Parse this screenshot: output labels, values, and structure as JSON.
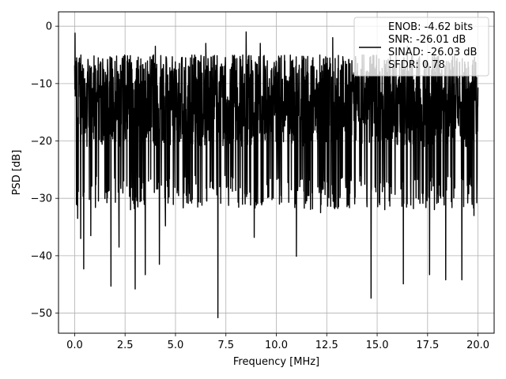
{
  "chart_data": {
    "type": "line",
    "title": "",
    "xlabel": "Frequency [MHz]",
    "ylabel": "PSD [dB]",
    "xlim": [
      -0.8,
      20.8
    ],
    "ylim": [
      -53.5,
      2.5
    ],
    "xticks": [
      0.0,
      2.5,
      5.0,
      7.5,
      10.0,
      12.5,
      15.0,
      17.5,
      20.0
    ],
    "xtick_labels": [
      "0.0",
      "2.5",
      "5.0",
      "7.5",
      "10.0",
      "12.5",
      "15.0",
      "17.5",
      "20.0"
    ],
    "yticks": [
      0,
      -10,
      -20,
      -30,
      -40,
      -50
    ],
    "ytick_labels": [
      "0",
      "−10",
      "−20",
      "−30",
      "−40",
      "−50"
    ],
    "grid": true,
    "legend_position": "top-right",
    "legend_entries": [
      "ENOB: -4.62 bits",
      "SNR: -26.01 dB",
      "SINAD: -26.03 dB",
      "SFDR: 0.78"
    ],
    "series": [
      {
        "color": "#000000",
        "description": "noisy PSD trace spanning 0 to 20 MHz",
        "x_range": [
          0.0,
          20.0
        ],
        "num_points": 2000,
        "noise_floor_db": -16,
        "typical_range_db": [
          -26,
          -5
        ],
        "peaks": [
          {
            "x": 0.02,
            "y": -1.2
          },
          {
            "x": 0.1,
            "y": -5.5
          },
          {
            "x": 8.5,
            "y": -1.0
          },
          {
            "x": 12.8,
            "y": -2.0
          },
          {
            "x": 6.5,
            "y": -3.0
          },
          {
            "x": 9.2,
            "y": -3.0
          },
          {
            "x": 16.5,
            "y": -3.5
          },
          {
            "x": 4.0,
            "y": -3.5
          }
        ],
        "dips": [
          {
            "x": 0.15,
            "y": -33.5
          },
          {
            "x": 0.3,
            "y": -37.0
          },
          {
            "x": 0.45,
            "y": -42.3
          },
          {
            "x": 0.8,
            "y": -36.5
          },
          {
            "x": 1.8,
            "y": -45.3
          },
          {
            "x": 2.2,
            "y": -38.5
          },
          {
            "x": 3.0,
            "y": -45.8
          },
          {
            "x": 3.5,
            "y": -43.3
          },
          {
            "x": 4.2,
            "y": -41.5
          },
          {
            "x": 4.5,
            "y": -34.8
          },
          {
            "x": 7.1,
            "y": -50.8
          },
          {
            "x": 8.9,
            "y": -36.8
          },
          {
            "x": 11.0,
            "y": -40.1
          },
          {
            "x": 12.2,
            "y": -32.5
          },
          {
            "x": 14.7,
            "y": -47.4
          },
          {
            "x": 16.3,
            "y": -44.9
          },
          {
            "x": 17.6,
            "y": -43.3
          },
          {
            "x": 18.4,
            "y": -44.2
          },
          {
            "x": 19.2,
            "y": -44.2
          },
          {
            "x": 19.8,
            "y": -33.0
          }
        ]
      }
    ]
  }
}
